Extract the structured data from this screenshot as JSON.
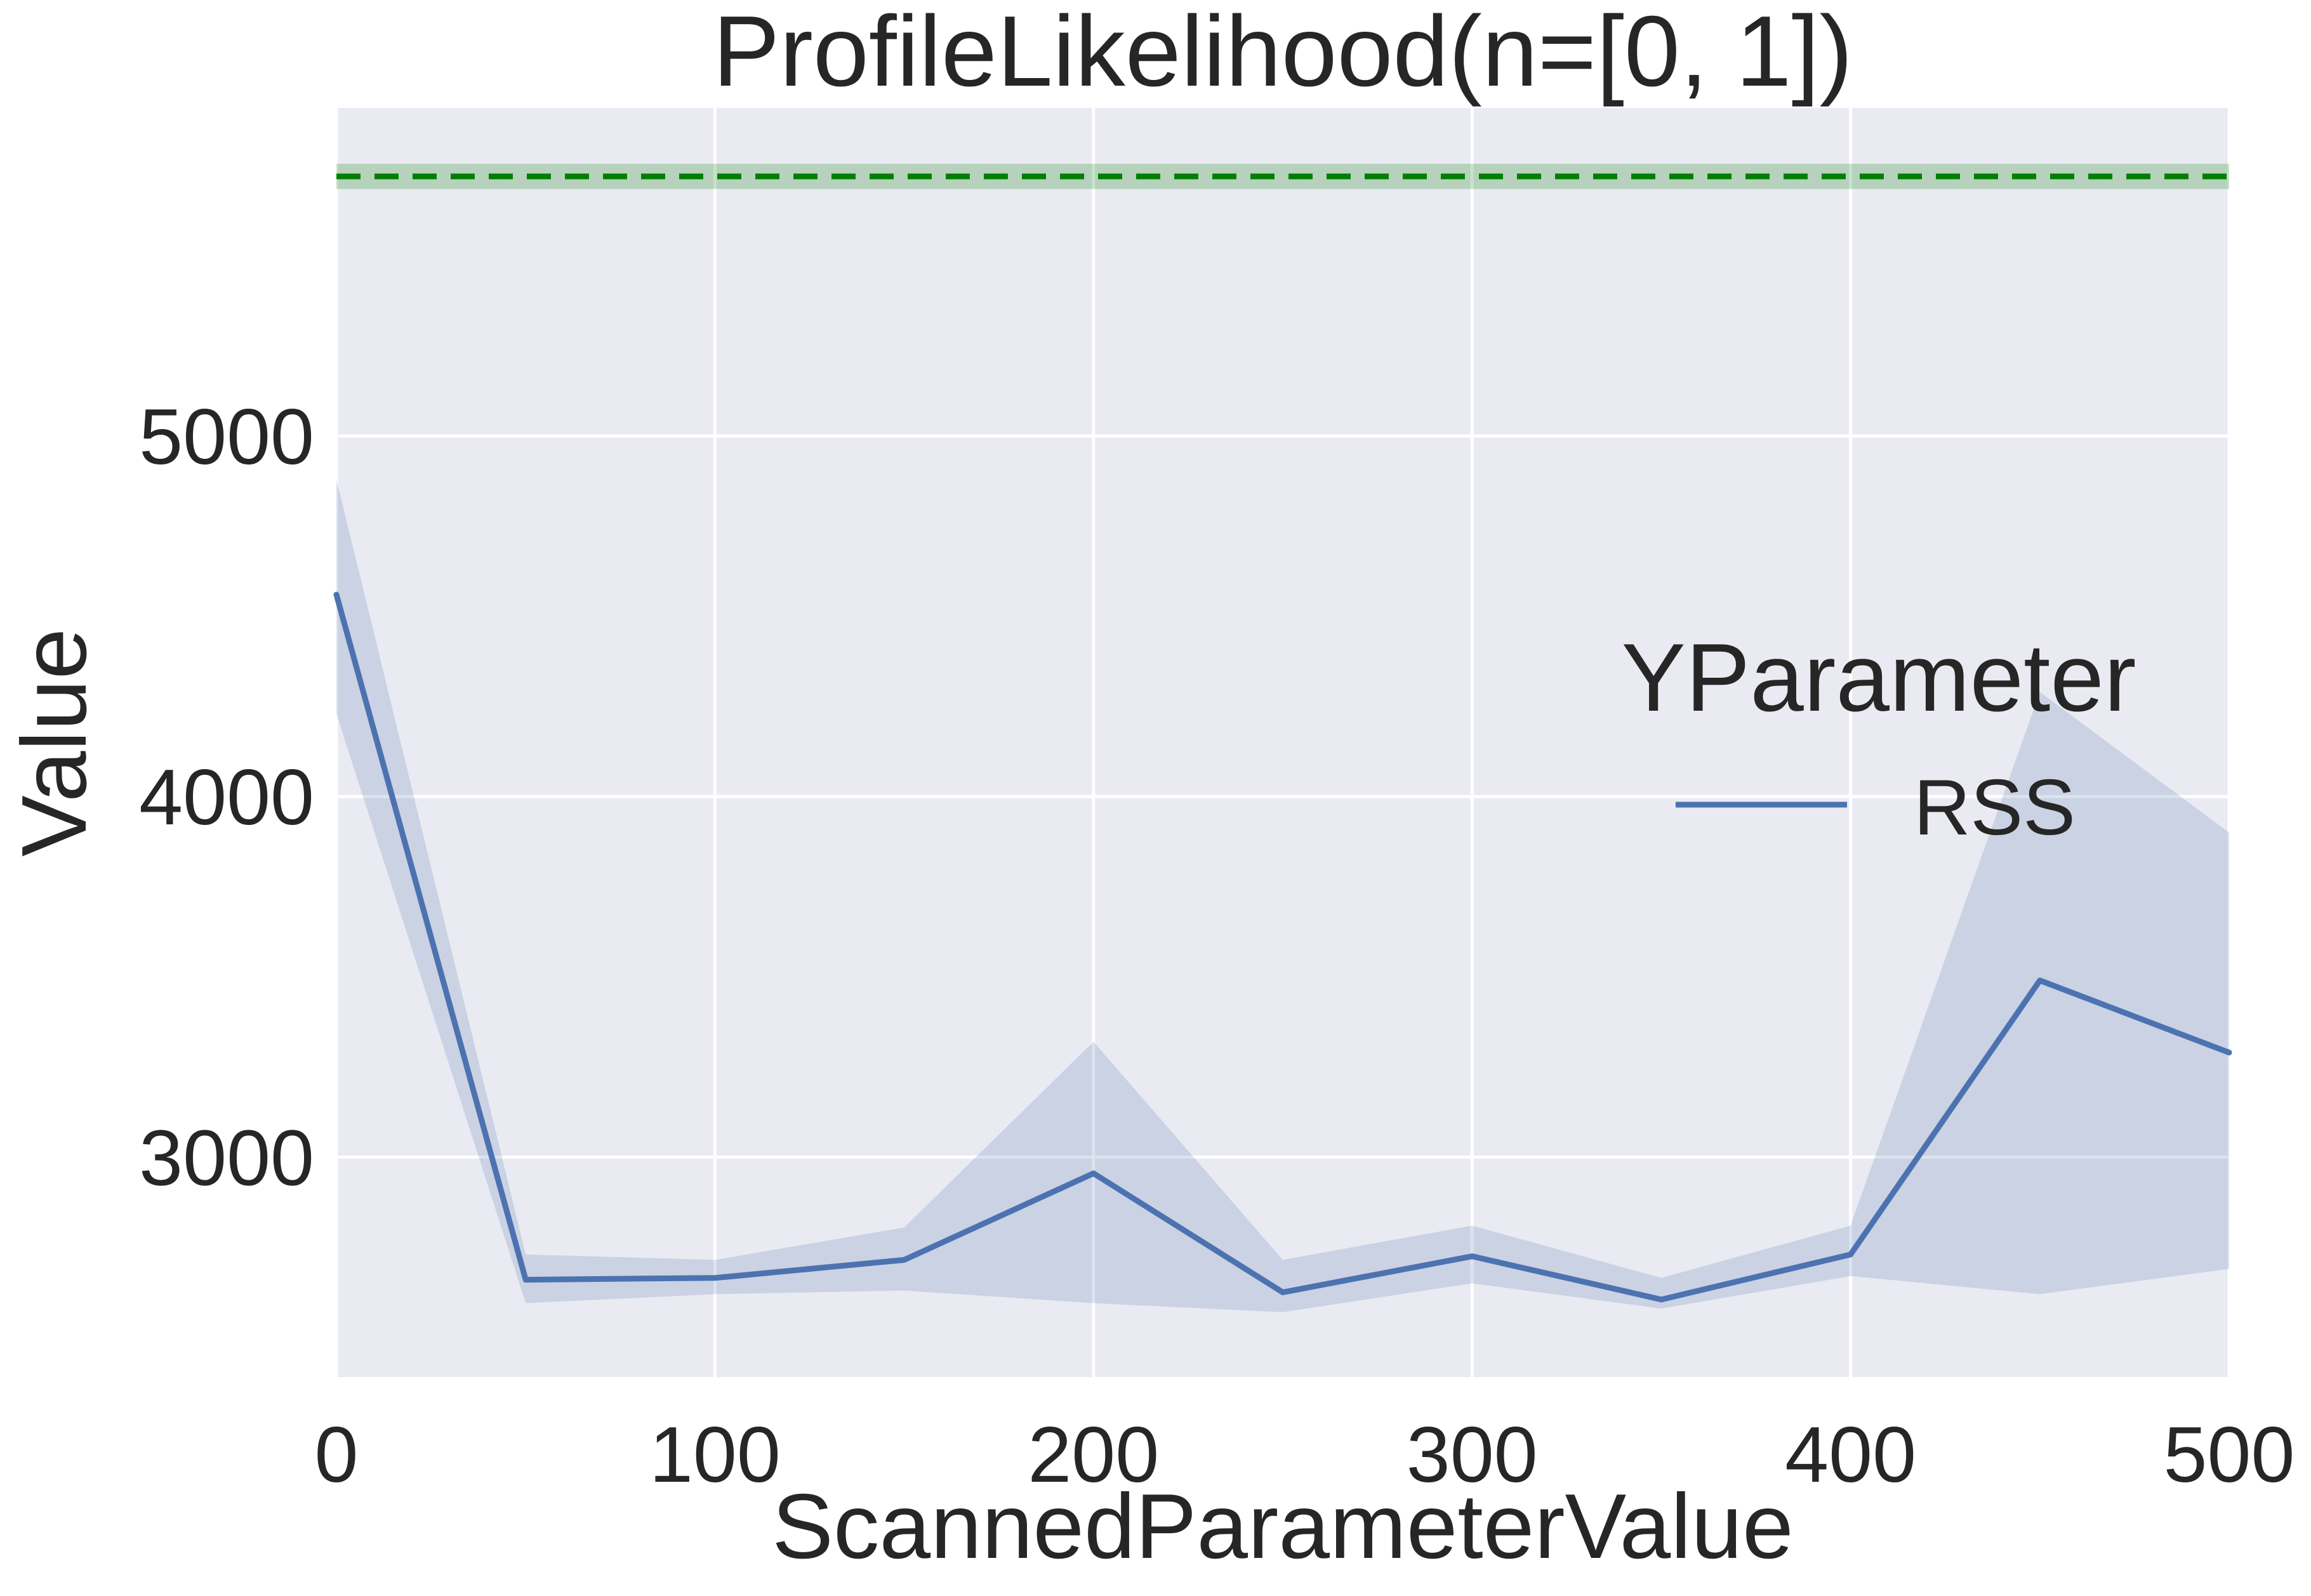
{
  "chart_data": {
    "type": "line",
    "title": "ProfileLikelihood(n=[0, 1])",
    "xlabel": "ScannedParameterValue",
    "ylabel": "Value",
    "xlim": [
      0,
      500
    ],
    "ylim": [
      2390,
      5910
    ],
    "x_ticks": [
      0,
      100,
      200,
      300,
      400,
      500
    ],
    "y_ticks": [
      3000,
      4000,
      5000
    ],
    "grid": true,
    "legend": {
      "title": "YParameter",
      "placement": "right",
      "entries": [
        "RSS"
      ]
    },
    "x": [
      0,
      50,
      100,
      150,
      200,
      250,
      300,
      350,
      400,
      450,
      500
    ],
    "series": [
      {
        "name": "RSS",
        "color": "#4c72b0",
        "values": [
          4560,
          2660,
          2665,
          2715,
          2955,
          2625,
          2725,
          2605,
          2730,
          3490,
          3290
        ],
        "band_upper": [
          4880,
          2730,
          2715,
          2805,
          3320,
          2715,
          2810,
          2665,
          2810,
          4290,
          3900
        ],
        "band_lower": [
          4230,
          2595,
          2620,
          2630,
          2595,
          2570,
          2650,
          2580,
          2670,
          2620,
          2690
        ]
      }
    ],
    "reference_line": {
      "y": 5720,
      "band": [
        5685,
        5755
      ],
      "color": "#007f00",
      "style": "dashed"
    }
  }
}
